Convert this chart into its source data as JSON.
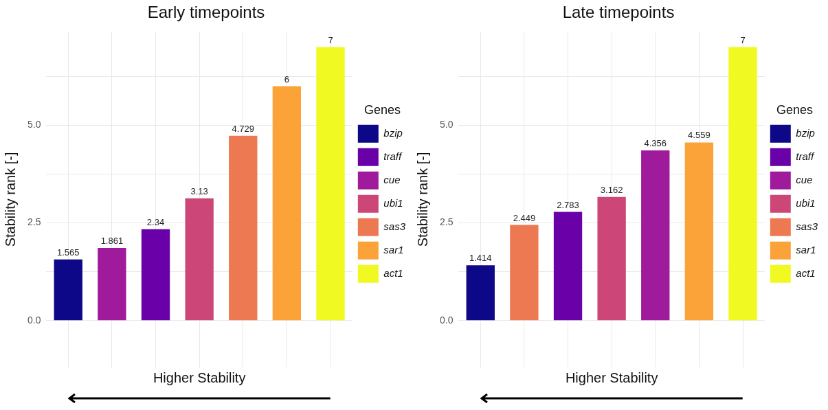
{
  "chart_data": [
    {
      "type": "bar",
      "title": "Early timepoints",
      "xlabel": "Higher Stability",
      "ylabel": "Stability rank [-]",
      "legend_title": "Genes",
      "legend": "right",
      "grid": true,
      "stacked": true,
      "data_labels": true,
      "tick_labels": "y",
      "categories": [
        null,
        null,
        null,
        null,
        null,
        null,
        null
      ],
      "ylim": [
        -1.2,
        7.4
      ],
      "yticks": [
        {
          "value": 0,
          "label": "0.0"
        },
        {
          "value": 1.25,
          "label": null
        },
        {
          "value": 2.5,
          "label": "2.5"
        },
        {
          "value": 3.75,
          "label": null
        },
        {
          "value": 5,
          "label": "5.0"
        },
        {
          "value": 6.25,
          "label": null
        }
      ],
      "series": [
        {
          "name": "bzip",
          "color": "#0d0887",
          "values": [
            1.565,
            null,
            null,
            null,
            null,
            null,
            null
          ]
        },
        {
          "name": "traff",
          "color": "#6a00a8",
          "values": [
            null,
            null,
            2.34,
            null,
            null,
            null,
            null
          ]
        },
        {
          "name": "cue",
          "color": "#a01a9c",
          "values": [
            null,
            1.861,
            null,
            null,
            null,
            null,
            null
          ]
        },
        {
          "name": "ubi1",
          "color": "#cc4778",
          "values": [
            null,
            null,
            null,
            3.13,
            null,
            null,
            null
          ]
        },
        {
          "name": "sas3",
          "color": "#ed7953",
          "values": [
            null,
            null,
            null,
            null,
            4.729,
            null,
            null
          ]
        },
        {
          "name": "sar1",
          "color": "#fba238",
          "values": [
            null,
            null,
            null,
            null,
            null,
            6,
            null
          ]
        },
        {
          "name": "act1",
          "color": "#f0f921",
          "values": [
            null,
            null,
            null,
            null,
            null,
            null,
            7
          ]
        }
      ]
    },
    {
      "type": "bar",
      "title": "Late timepoints",
      "xlabel": "Higher Stability",
      "ylabel": "Stability rank [-]",
      "legend_title": "Genes",
      "legend": "right",
      "grid": true,
      "stacked": true,
      "data_labels": true,
      "tick_labels": "y",
      "categories": [
        null,
        null,
        null,
        null,
        null,
        null,
        null
      ],
      "ylim": [
        -1.2,
        7.4
      ],
      "yticks": [
        {
          "value": 0,
          "label": "0.0"
        },
        {
          "value": 1.25,
          "label": null
        },
        {
          "value": 2.5,
          "label": "2.5"
        },
        {
          "value": 3.75,
          "label": null
        },
        {
          "value": 5,
          "label": "5.0"
        },
        {
          "value": 6.25,
          "label": null
        }
      ],
      "series": [
        {
          "name": "bzip",
          "color": "#0d0887",
          "values": [
            1.414,
            null,
            null,
            null,
            null,
            null,
            null
          ]
        },
        {
          "name": "traff",
          "color": "#6a00a8",
          "values": [
            null,
            null,
            2.783,
            null,
            null,
            null,
            null
          ]
        },
        {
          "name": "cue",
          "color": "#a01a9c",
          "values": [
            null,
            null,
            null,
            null,
            4.356,
            null,
            null
          ]
        },
        {
          "name": "ubi1",
          "color": "#cc4778",
          "values": [
            null,
            null,
            null,
            3.162,
            null,
            null,
            null
          ]
        },
        {
          "name": "sas3",
          "color": "#ed7953",
          "values": [
            null,
            2.449,
            null,
            null,
            null,
            null,
            null
          ]
        },
        {
          "name": "sar1",
          "color": "#fba238",
          "values": [
            null,
            null,
            null,
            null,
            null,
            4.559,
            null
          ]
        },
        {
          "name": "act1",
          "color": "#f0f921",
          "values": [
            null,
            null,
            null,
            null,
            null,
            null,
            7
          ]
        }
      ]
    }
  ]
}
